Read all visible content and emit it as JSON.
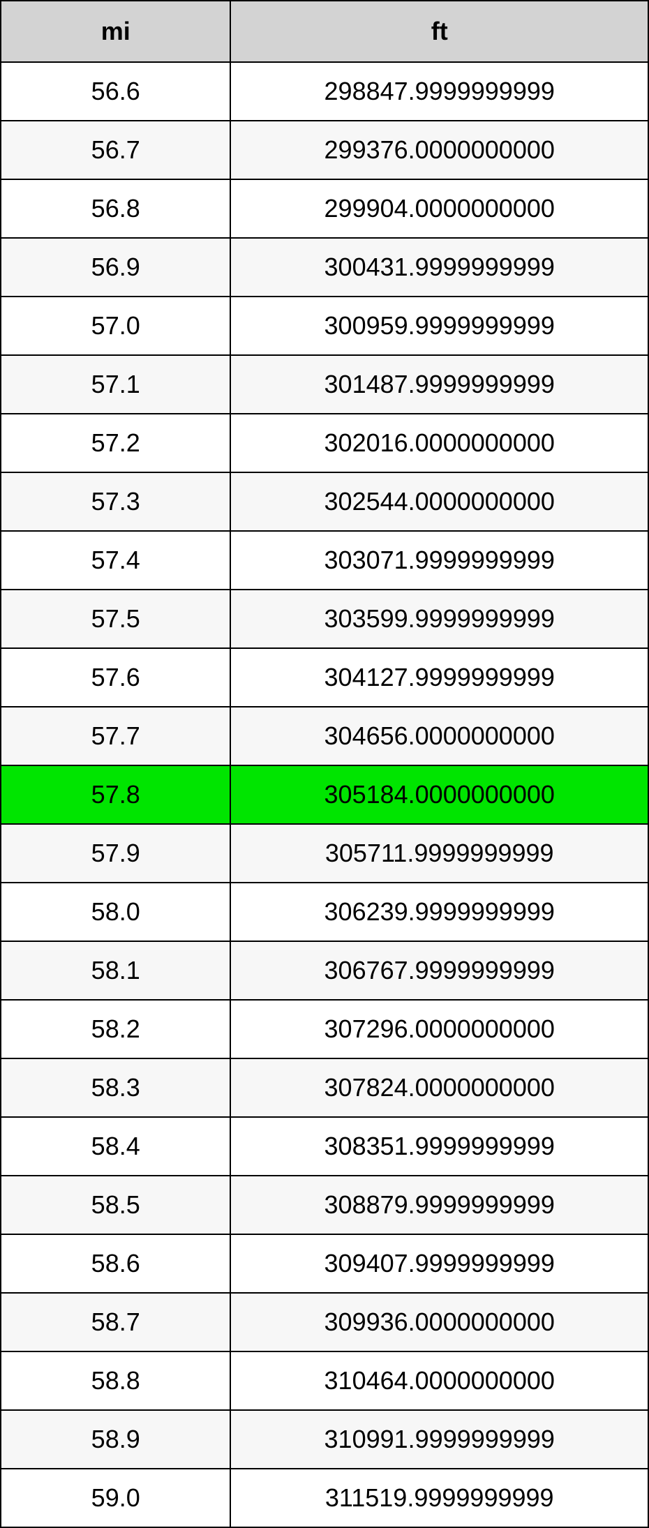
{
  "table": {
    "columns": [
      "mi",
      "ft"
    ],
    "header_bg": "#d3d3d3",
    "highlight_bg": "#00e500",
    "even_row_bg": "#f7f7f7",
    "odd_row_bg": "#ffffff",
    "border_color": "#000000",
    "font_size": 36,
    "column_widths": [
      "35.5%",
      "64.5%"
    ],
    "highlight_index": 12,
    "rows": [
      [
        "56.6",
        "298847.9999999999"
      ],
      [
        "56.7",
        "299376.0000000000"
      ],
      [
        "56.8",
        "299904.0000000000"
      ],
      [
        "56.9",
        "300431.9999999999"
      ],
      [
        "57.0",
        "300959.9999999999"
      ],
      [
        "57.1",
        "301487.9999999999"
      ],
      [
        "57.2",
        "302016.0000000000"
      ],
      [
        "57.3",
        "302544.0000000000"
      ],
      [
        "57.4",
        "303071.9999999999"
      ],
      [
        "57.5",
        "303599.9999999999"
      ],
      [
        "57.6",
        "304127.9999999999"
      ],
      [
        "57.7",
        "304656.0000000000"
      ],
      [
        "57.8",
        "305184.0000000000"
      ],
      [
        "57.9",
        "305711.9999999999"
      ],
      [
        "58.0",
        "306239.9999999999"
      ],
      [
        "58.1",
        "306767.9999999999"
      ],
      [
        "58.2",
        "307296.0000000000"
      ],
      [
        "58.3",
        "307824.0000000000"
      ],
      [
        "58.4",
        "308351.9999999999"
      ],
      [
        "58.5",
        "308879.9999999999"
      ],
      [
        "58.6",
        "309407.9999999999"
      ],
      [
        "58.7",
        "309936.0000000000"
      ],
      [
        "58.8",
        "310464.0000000000"
      ],
      [
        "58.9",
        "310991.9999999999"
      ],
      [
        "59.0",
        "311519.9999999999"
      ]
    ]
  }
}
